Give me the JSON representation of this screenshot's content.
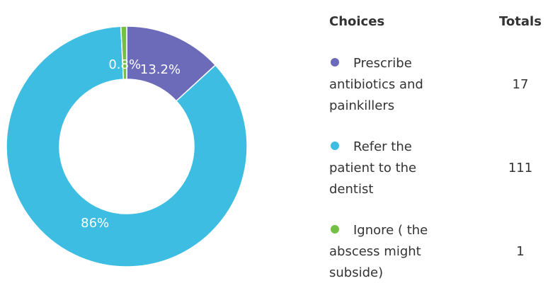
{
  "chart_data": {
    "type": "pie",
    "variant": "donut",
    "categories": [
      "Prescribe antibiotics and painkillers",
      "Refer the patient to the dentist",
      "Ignore ( the abscess might subside)"
    ],
    "values": [
      17,
      111,
      1
    ],
    "percent_labels": [
      "13.2%",
      "86%",
      "0.8%"
    ],
    "colors": [
      "#6b6bb9",
      "#3ebde3",
      "#74bf44"
    ],
    "legend": "right"
  },
  "table": {
    "choices_header": "Choices",
    "totals_header": "Totals",
    "rows": [
      {
        "label": "Prescribe antibiotics and painkillers",
        "total": "17",
        "color": "#6b6bb9"
      },
      {
        "label": "Refer the patient to the dentist",
        "total": "111",
        "color": "#3ebde3"
      },
      {
        "label": "Ignore ( the abscess might subside)",
        "total": "1",
        "color": "#74bf44"
      }
    ]
  }
}
